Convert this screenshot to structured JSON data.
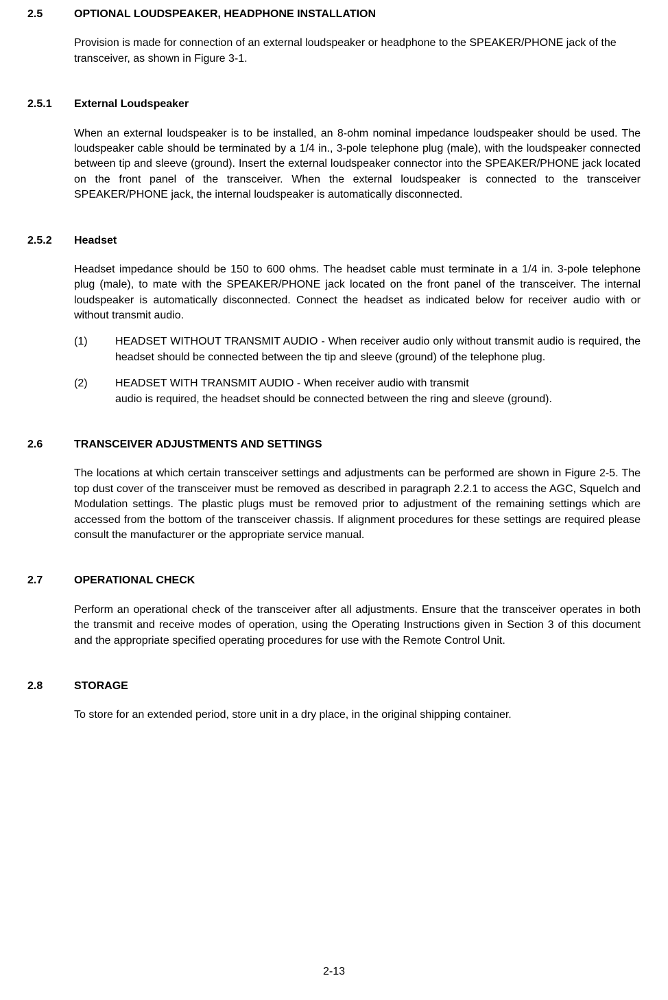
{
  "s25": {
    "num": "2.5",
    "title": "OPTIONAL LOUDSPEAKER, HEADPHONE INSTALLATION",
    "body": "Provision is made for connection of an external loudspeaker or headphone to the SPEAKER/PHONE jack of the transceiver, as shown in Figure 3-1."
  },
  "s251": {
    "num": "2.5.1",
    "title": "External Loudspeaker",
    "body": "When an external loudspeaker is to be installed, an 8-ohm nominal impedance loudspeaker should be used. The loudspeaker cable should be terminated by a 1/4 in., 3-pole telephone plug (male), with the loudspeaker connected between tip and sleeve (ground). Insert the external loudspeaker connector into the SPEAKER/PHONE jack located on the front panel of the transceiver. When the external loudspeaker is connected to the transceiver SPEAKER/PHONE jack, the internal loudspeaker is automatically disconnected."
  },
  "s252": {
    "num": "2.5.2",
    "title": "Headset",
    "intro": "Headset impedance should be 150 to 600 ohms. The headset cable must terminate in a 1/4 in. 3-pole telephone plug (male), to mate with the SPEAKER/PHONE jack located on the front panel of the transceiver. The internal loudspeaker is automatically disconnected. Connect the headset as indicated below for receiver audio with or without transmit audio.",
    "items": [
      {
        "num": "(1)",
        "text": "HEADSET WITHOUT TRANSMIT AUDIO - When receiver audio only without transmit audio is required, the headset should be connected between the tip and sleeve (ground) of the telephone plug."
      },
      {
        "num": "(2)",
        "line1": "HEADSET WITH TRANSMIT AUDIO - When receiver audio with transmit",
        "line2": "audio is required, the headset should be connected between the ring and sleeve (ground)."
      }
    ]
  },
  "s26": {
    "num": "2.6",
    "title": "TRANSCEIVER ADJUSTMENTS AND SETTINGS",
    "body": "The locations at which certain transceiver settings and adjustments can be performed are shown in Figure 2-5.  The top dust cover of the transceiver must be removed as described in paragraph 2.2.1 to access the AGC, Squelch and Modulation settings.  The plastic plugs must be removed prior to adjustment of the remaining settings which are accessed from the bottom of the transceiver chassis.  If alignment procedures for these settings are required please consult the manufacturer or the appropriate service manual."
  },
  "s27": {
    "num": "2.7",
    "title": "OPERATIONAL CHECK",
    "body": "Perform an operational check of the transceiver after all adjustments. Ensure that the transceiver operates in both the transmit and receive modes of operation, using the Operating Instructions given in Section 3 of this document and the appropriate specified operating procedures for use with the Remote Control Unit."
  },
  "s28": {
    "num": "2.8",
    "title": "STORAGE",
    "body": "To store for an extended period, store unit in a dry place, in the original shipping container."
  },
  "page_number": "2-13"
}
